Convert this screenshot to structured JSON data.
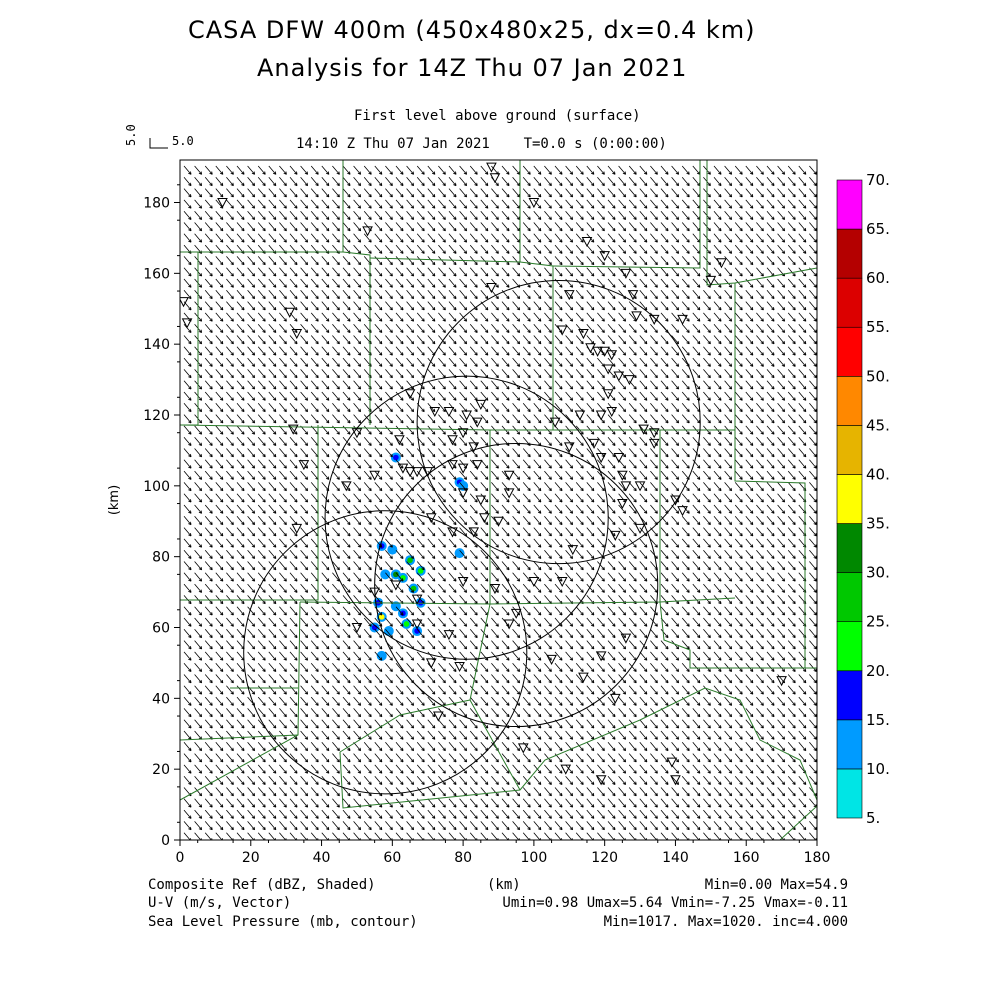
{
  "header": {
    "title_line1": "CASA DFW 400m (450x480x25, dx=0.4 km)",
    "title_line2": "Analysis for 14Z Thu 07 Jan 2021",
    "level_label": "First level above ground (surface)",
    "time_label": "14:10 Z Thu 07 Jan 2021    T=0.0 s (0:00:00)",
    "vector_scale_label": "5.0",
    "vector_scale_rotated": "5.0"
  },
  "map": {
    "x_axis_label": "(km)",
    "y_axis_label": "(km)",
    "x_range": [
      0,
      180
    ],
    "y_range": [
      0,
      192
    ],
    "x_ticks": [
      "0",
      "20",
      "40",
      "60",
      "80",
      "100",
      "120",
      "140",
      "160",
      "180"
    ],
    "y_ticks": [
      "0",
      "20",
      "40",
      "60",
      "80",
      "100",
      "120",
      "140",
      "160",
      "180"
    ],
    "vector_color": "#000000",
    "boundary_color": "#2a7a2a",
    "radar_range_rings": [
      {
        "cx": 107,
        "cy": 118,
        "r": 40
      },
      {
        "cx": 81,
        "cy": 91,
        "r": 40
      },
      {
        "cx": 95,
        "cy": 72,
        "r": 40
      },
      {
        "cx": 58,
        "cy": 53,
        "r": 40
      }
    ],
    "reflectivity_blobs": [
      {
        "x": 61,
        "y": 108,
        "dbz": 15
      },
      {
        "x": 79,
        "y": 101,
        "dbz": 15
      },
      {
        "x": 80,
        "y": 100,
        "dbz": 10
      },
      {
        "x": 79,
        "y": 81,
        "dbz": 10
      },
      {
        "x": 57,
        "y": 83,
        "dbz": 15
      },
      {
        "x": 60,
        "y": 82,
        "dbz": 10
      },
      {
        "x": 61,
        "y": 75,
        "dbz": 30
      },
      {
        "x": 63,
        "y": 74,
        "dbz": 20
      },
      {
        "x": 65,
        "y": 79,
        "dbz": 25
      },
      {
        "x": 66,
        "y": 71,
        "dbz": 25
      },
      {
        "x": 68,
        "y": 76,
        "dbz": 20
      },
      {
        "x": 68,
        "y": 67,
        "dbz": 15
      },
      {
        "x": 56,
        "y": 67,
        "dbz": 15
      },
      {
        "x": 57,
        "y": 63,
        "dbz": 35
      },
      {
        "x": 55,
        "y": 60,
        "dbz": 15
      },
      {
        "x": 59,
        "y": 59,
        "dbz": 10
      },
      {
        "x": 63,
        "y": 64,
        "dbz": 15
      },
      {
        "x": 64,
        "y": 61,
        "dbz": 20
      },
      {
        "x": 67,
        "y": 59,
        "dbz": 15
      },
      {
        "x": 61,
        "y": 66,
        "dbz": 10
      },
      {
        "x": 57,
        "y": 52,
        "dbz": 10
      },
      {
        "x": 58,
        "y": 75,
        "dbz": 10
      }
    ],
    "station_markers": [
      [
        12,
        180
      ],
      [
        33,
        143
      ],
      [
        31,
        149
      ],
      [
        53,
        172
      ],
      [
        47,
        100
      ],
      [
        33,
        88
      ],
      [
        35,
        106
      ],
      [
        32,
        116
      ],
      [
        50,
        115
      ],
      [
        55,
        103
      ],
      [
        62,
        113
      ],
      [
        63,
        105
      ],
      [
        65,
        104
      ],
      [
        67,
        104
      ],
      [
        70,
        104
      ],
      [
        65,
        126
      ],
      [
        72,
        121
      ],
      [
        76,
        121
      ],
      [
        81,
        120
      ],
      [
        80,
        115
      ],
      [
        83,
        111
      ],
      [
        77,
        113
      ],
      [
        84,
        106
      ],
      [
        80,
        105
      ],
      [
        77,
        106
      ],
      [
        80,
        98
      ],
      [
        85,
        96
      ],
      [
        86,
        91
      ],
      [
        93,
        103
      ],
      [
        93,
        98
      ],
      [
        71,
        91
      ],
      [
        77,
        87
      ],
      [
        83,
        87
      ],
      [
        90,
        90
      ],
      [
        84,
        118
      ],
      [
        85,
        123
      ],
      [
        88,
        156
      ],
      [
        88,
        190
      ],
      [
        89,
        187
      ],
      [
        100,
        180
      ],
      [
        115,
        169
      ],
      [
        120,
        165
      ],
      [
        126,
        160
      ],
      [
        128,
        154
      ],
      [
        129,
        148
      ],
      [
        134,
        147
      ],
      [
        108,
        144
      ],
      [
        114,
        143
      ],
      [
        110,
        154
      ],
      [
        116,
        139
      ],
      [
        118,
        138
      ],
      [
        120,
        138
      ],
      [
        122,
        137
      ],
      [
        121,
        133
      ],
      [
        124,
        131
      ],
      [
        127,
        130
      ],
      [
        121,
        126
      ],
      [
        122,
        121
      ],
      [
        119,
        120
      ],
      [
        113,
        120
      ],
      [
        106,
        118
      ],
      [
        110,
        111
      ],
      [
        117,
        112
      ],
      [
        119,
        108
      ],
      [
        124,
        108
      ],
      [
        125,
        103
      ],
      [
        126,
        100
      ],
      [
        130,
        100
      ],
      [
        125,
        95
      ],
      [
        131,
        116
      ],
      [
        134,
        115
      ],
      [
        134,
        112
      ],
      [
        140,
        96
      ],
      [
        142,
        93
      ],
      [
        150,
        158
      ],
      [
        153,
        163
      ],
      [
        142,
        147
      ],
      [
        130,
        88
      ],
      [
        123,
        86
      ],
      [
        111,
        82
      ],
      [
        108,
        73
      ],
      [
        100,
        73
      ],
      [
        89,
        71
      ],
      [
        80,
        73
      ],
      [
        76,
        58
      ],
      [
        93,
        61
      ],
      [
        95,
        64
      ],
      [
        105,
        51
      ],
      [
        114,
        46
      ],
      [
        119,
        52
      ],
      [
        126,
        57
      ],
      [
        123,
        40
      ],
      [
        109,
        20
      ],
      [
        119,
        17
      ],
      [
        140,
        17
      ],
      [
        139,
        22
      ],
      [
        170,
        45
      ],
      [
        97,
        26
      ],
      [
        73,
        35
      ],
      [
        71,
        50
      ],
      [
        79,
        49
      ],
      [
        67,
        61
      ],
      [
        67,
        68
      ],
      [
        61,
        72
      ],
      [
        55,
        70
      ],
      [
        50,
        60
      ],
      [
        2,
        146
      ],
      [
        1,
        152
      ]
    ]
  },
  "colorbar": {
    "colors": [
      "#00e5e5",
      "#009bff",
      "#0000ff",
      "#00ff00",
      "#00c800",
      "#008800",
      "#ffff00",
      "#e6b400",
      "#ff8800",
      "#ff0000",
      "#dc0000",
      "#b40000",
      "#ff00ff"
    ],
    "labels": [
      "5.",
      "10.",
      "15.",
      "20.",
      "25.",
      "30.",
      "35.",
      "40.",
      "45.",
      "50.",
      "55.",
      "60.",
      "65.",
      "70."
    ],
    "min": 5,
    "max": 70
  },
  "footer": {
    "left1": "Composite Ref (dBZ, Shaded)",
    "left2": "U-V (m/s, Vector)",
    "left3": "Sea Level Pressure (mb, contour)",
    "center1": "(km)",
    "right1": "Min=0.00 Max=54.9",
    "right2": "Umin=0.98 Umax=5.64 Vmin=-7.25 Vmax=-0.11",
    "right3": "Min=1017. Max=1020. inc=4.000"
  }
}
